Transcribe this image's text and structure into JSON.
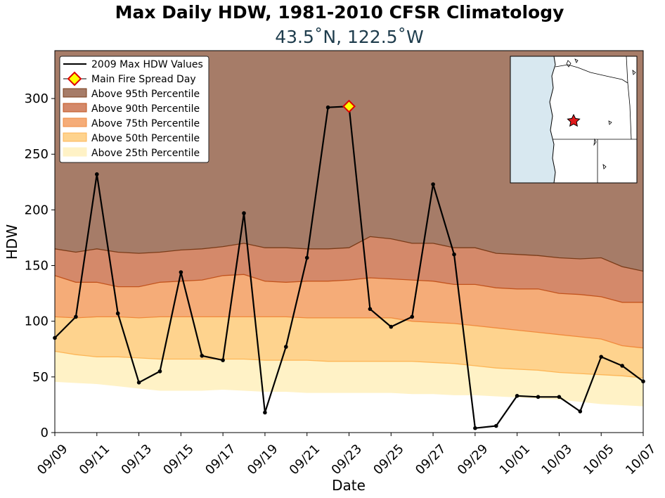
{
  "chart_data": {
    "type": "line",
    "title": "Max Daily HDW, 1981-2010 CFSR Climatology",
    "subtitle": "43.5˚N, 122.5˚W",
    "xlabel": "Date",
    "ylabel": "HDW",
    "ylim": [
      0,
      343
    ],
    "yticks": [
      0,
      50,
      100,
      150,
      200,
      250,
      300
    ],
    "xtick_labels": [
      "09/09",
      "09/11",
      "09/13",
      "09/15",
      "09/17",
      "09/19",
      "09/21",
      "09/23",
      "09/25",
      "09/27",
      "09/29",
      "10/01",
      "10/03",
      "10/05",
      "10/07"
    ],
    "x": [
      "09/09",
      "09/10",
      "09/11",
      "09/12",
      "09/13",
      "09/14",
      "09/15",
      "09/16",
      "09/17",
      "09/18",
      "09/19",
      "09/20",
      "09/21",
      "09/22",
      "09/23",
      "09/24",
      "09/25",
      "09/26",
      "09/27",
      "09/28",
      "09/29",
      "09/30",
      "10/01",
      "10/02",
      "10/03",
      "10/04",
      "10/05",
      "10/06",
      "10/07"
    ],
    "series": [
      {
        "name": "2009 Max HDW Values",
        "color": "#000000",
        "values": [
          85,
          104,
          232,
          107,
          45,
          55,
          144,
          69,
          65,
          197,
          18,
          77,
          157,
          292,
          293,
          111,
          95,
          104,
          223,
          160,
          4,
          6,
          33,
          32,
          32,
          19,
          68,
          60,
          46
        ]
      }
    ],
    "highlight_point": {
      "name": "Main Fire Spread Day",
      "x": "09/23",
      "y": 293,
      "marker_color": "#ffff00",
      "edge_color": "#dd0000"
    },
    "percentile_bands": [
      {
        "name": "Above 95th Percentile",
        "color": "#a67c68",
        "edge": "#7a3b18",
        "values": [
          165,
          162,
          165,
          162,
          161,
          162,
          164,
          165,
          167,
          170,
          166,
          166,
          165,
          165,
          166,
          176,
          174,
          170,
          170,
          166,
          166,
          161,
          160,
          159,
          157,
          156,
          157,
          149,
          145
        ]
      },
      {
        "name": "Above 90th Percentile",
        "color": "#d4896a",
        "edge": "#c2541e",
        "values": [
          141,
          135,
          135,
          131,
          131,
          135,
          136,
          137,
          141,
          142,
          136,
          135,
          136,
          136,
          137,
          139,
          138,
          137,
          136,
          133,
          133,
          130,
          129,
          129,
          125,
          124,
          122,
          117,
          117
        ]
      },
      {
        "name": "Above 75th Percentile",
        "color": "#f5ac78",
        "edge": "#f08a3c",
        "values": [
          104,
          103,
          104,
          104,
          103,
          104,
          104,
          104,
          104,
          104,
          104,
          104,
          103,
          103,
          103,
          103,
          103,
          100,
          99,
          98,
          96,
          94,
          92,
          90,
          88,
          86,
          84,
          78,
          76
        ]
      },
      {
        "name": "Above 50th Percentile",
        "color": "#fed38e",
        "edge": "#fdb657",
        "values": [
          73,
          70,
          68,
          68,
          67,
          66,
          66,
          66,
          66,
          66,
          65,
          65,
          65,
          64,
          64,
          64,
          64,
          64,
          63,
          62,
          60,
          58,
          57,
          56,
          54,
          53,
          52,
          51,
          49
        ]
      },
      {
        "name": "Above 25th Percentile",
        "color": "#fff2c6",
        "edge": "#fff2c6",
        "values": [
          46,
          45,
          44,
          42,
          40,
          38,
          38,
          38,
          39,
          38,
          37,
          37,
          36,
          36,
          36,
          36,
          36,
          35,
          35,
          34,
          34,
          33,
          32,
          31,
          30,
          28,
          26,
          25,
          24
        ]
      }
    ],
    "legend_position": "top-left",
    "inset_map": {
      "position": "top-right",
      "marker": "red star",
      "water_color": "#d8e8f0",
      "land_color": "#ffffff"
    }
  }
}
